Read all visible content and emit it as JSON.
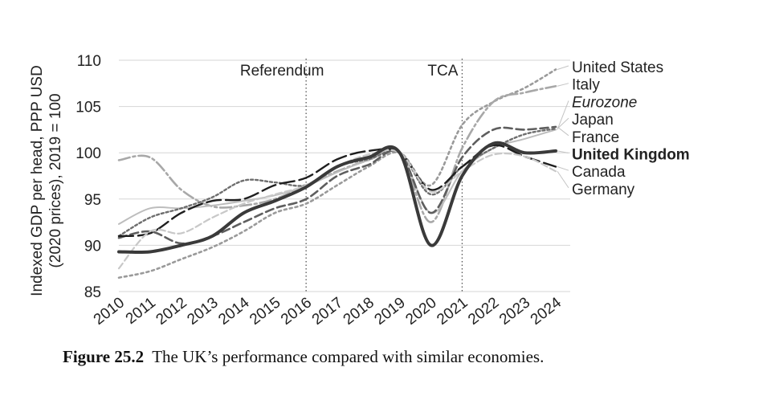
{
  "caption": {
    "label": "Figure 25.2",
    "text": "The UK’s performance compared with similar economies."
  },
  "chart_data": {
    "type": "line",
    "ylabel_line1": "Indexed GDP per head, PPP USD",
    "ylabel_line2": "(2020 prices), 2019 = 100",
    "ylim": [
      85,
      110
    ],
    "yticks": [
      85,
      90,
      95,
      100,
      105,
      110
    ],
    "xlim": [
      2010,
      2024
    ],
    "xticks": [
      "2010",
      "2011",
      "2012",
      "2013",
      "2014",
      "2015",
      "2016",
      "2017",
      "2018",
      "2019",
      "2020",
      "2021",
      "2022",
      "2023",
      "2024"
    ],
    "grid": "horizontal",
    "annotations": [
      {
        "label": "Referendum",
        "x": 2016
      },
      {
        "label": "TCA",
        "x": 2021
      }
    ],
    "series": [
      {
        "name": "United States",
        "color": "#9a9a9a",
        "dash": "3,4",
        "width": 2.6,
        "weight": "normal",
        "style": "normal",
        "x": [
          2010,
          2011,
          2012,
          2013,
          2014,
          2015,
          2016,
          2017,
          2018,
          2019,
          2020,
          2021,
          2022,
          2023,
          2024
        ],
        "y": [
          86.5,
          87.2,
          88.5,
          89.8,
          91.5,
          93.5,
          94.5,
          96.5,
          98.5,
          100.0,
          96.5,
          103.0,
          105.5,
          107.0,
          109.0
        ]
      },
      {
        "name": "Italy",
        "color": "#a8a8a8",
        "dash": "14,4,3,4",
        "width": 2.6,
        "weight": "normal",
        "style": "normal",
        "x": [
          2010,
          2011,
          2012,
          2013,
          2014,
          2015,
          2016,
          2017,
          2018,
          2019,
          2020,
          2021,
          2022,
          2023,
          2024
        ],
        "y": [
          99.2,
          99.5,
          96.0,
          94.2,
          94.3,
          95.0,
          96.5,
          98.0,
          99.2,
          100.0,
          92.5,
          100.5,
          105.5,
          106.5,
          107.2
        ]
      },
      {
        "name": "Eurozone",
        "color": "#bdbdbd",
        "dash": "",
        "width": 2.0,
        "weight": "normal",
        "style": "italic",
        "x": [
          2010,
          2011,
          2012,
          2013,
          2014,
          2015,
          2016,
          2017,
          2018,
          2019,
          2020,
          2021,
          2022,
          2023,
          2024
        ],
        "y": [
          92.3,
          94.0,
          94.0,
          94.3,
          94.8,
          95.4,
          96.4,
          97.9,
          99.2,
          100.0,
          93.5,
          98.0,
          100.5,
          101.5,
          102.5
        ]
      },
      {
        "name": "Japan",
        "color": "#6e6e6e",
        "dash": "3,3",
        "width": 2.4,
        "weight": "normal",
        "style": "normal",
        "x": [
          2010,
          2011,
          2012,
          2013,
          2014,
          2015,
          2016,
          2017,
          2018,
          2019,
          2020,
          2021,
          2022,
          2023,
          2024
        ],
        "y": [
          91.0,
          93.0,
          94.0,
          95.2,
          97.0,
          96.8,
          96.5,
          98.5,
          99.3,
          100.0,
          95.5,
          98.5,
          100.5,
          102.0,
          102.6
        ]
      },
      {
        "name": "France",
        "color": "#5e5e5e",
        "dash": "10,5",
        "width": 2.6,
        "weight": "normal",
        "style": "normal",
        "x": [
          2010,
          2011,
          2012,
          2013,
          2014,
          2015,
          2016,
          2017,
          2018,
          2019,
          2020,
          2021,
          2022,
          2023,
          2024
        ],
        "y": [
          90.8,
          91.5,
          90.2,
          91.0,
          92.5,
          94.0,
          95.0,
          97.5,
          98.7,
          100.0,
          93.5,
          99.5,
          102.5,
          102.5,
          102.8
        ]
      },
      {
        "name": "United Kingdom",
        "color": "#3a3a3a",
        "dash": "",
        "width": 4.0,
        "weight": "bold",
        "style": "normal",
        "x": [
          2010,
          2011,
          2012,
          2013,
          2014,
          2015,
          2016,
          2017,
          2018,
          2019,
          2020,
          2021,
          2022,
          2023,
          2024
        ],
        "y": [
          89.3,
          89.3,
          90.0,
          91.0,
          93.5,
          94.8,
          96.3,
          98.5,
          99.5,
          100.0,
          90.0,
          97.5,
          101.0,
          100.0,
          100.2
        ]
      },
      {
        "name": "Canada",
        "color": "#1f1f1f",
        "dash": "18,6",
        "width": 2.4,
        "weight": "normal",
        "style": "normal",
        "x": [
          2010,
          2011,
          2012,
          2013,
          2014,
          2015,
          2016,
          2017,
          2018,
          2019,
          2020,
          2021,
          2022,
          2023,
          2024
        ],
        "y": [
          91.0,
          91.3,
          93.5,
          94.8,
          95.0,
          96.5,
          97.3,
          99.3,
          100.2,
          100.0,
          96.0,
          98.5,
          100.8,
          99.6,
          98.5
        ]
      },
      {
        "name": "Germany",
        "color": "#c8c8c8",
        "dash": "8,4",
        "width": 2.2,
        "weight": "normal",
        "style": "normal",
        "x": [
          2010,
          2011,
          2012,
          2013,
          2014,
          2015,
          2016,
          2017,
          2018,
          2019,
          2020,
          2021,
          2022,
          2023,
          2024
        ],
        "y": [
          87.5,
          91.5,
          91.3,
          93.0,
          94.5,
          95.5,
          96.5,
          98.5,
          99.8,
          100.0,
          95.8,
          98.0,
          99.8,
          99.6,
          98.0
        ]
      }
    ]
  }
}
